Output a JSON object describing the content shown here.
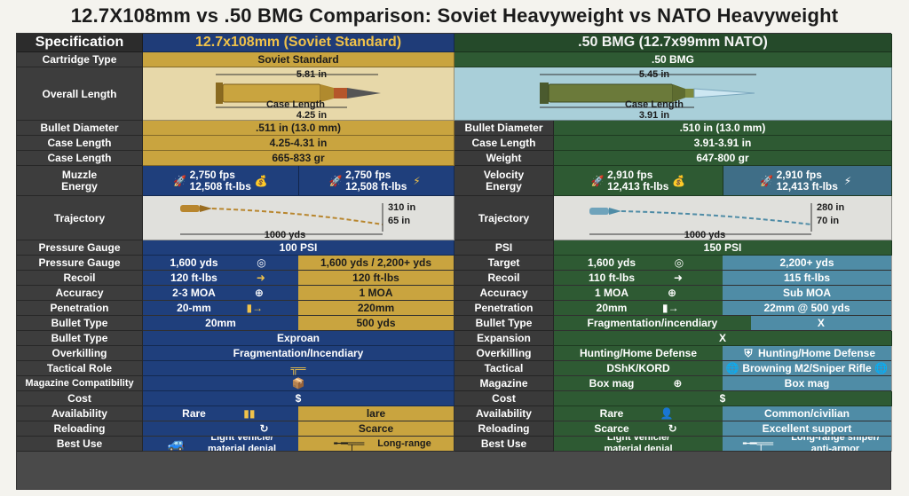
{
  "title": "12.7X108mm vs .50 BMG Comparison: Soviet Heavyweight vs NATO Heavyweight",
  "header": {
    "spec": "Specification",
    "soviet": "12.7x108mm (Soviet Standard)",
    "nato": ".50 BMG (12.7x99mm NATO)"
  },
  "rows": {
    "cartridge_type": {
      "label": "Cartridge Type",
      "soviet": "Soviet Standard",
      "nato": ".50 BMG"
    },
    "overall_length": {
      "label": "Overall Length",
      "soviet": {
        "length": "5.81 in",
        "case_label": "Case Length",
        "case_value": "4.25 in"
      },
      "nato": {
        "length": "5.45 in",
        "case_label": "Case Length",
        "case_value": "3.91 in"
      }
    },
    "bullet_diameter": {
      "label": "Bullet Diameter",
      "soviet": ".511 in (13.0 mm)",
      "mid_label": "Bullet Diameter",
      "nato": ".510 in (13.0 mm)"
    },
    "case_length": {
      "label": "Case Length",
      "soviet": "4.25-4.31 in",
      "mid_label": "Case Length",
      "nato": "3.91-3.91 in"
    },
    "case_length2": {
      "label": "Case Length",
      "soviet": "665-833 gr",
      "mid_label": "Weight",
      "nato": "647-800 gr"
    },
    "muzzle_energy": {
      "label1": "Muzzle",
      "label2": "Energy",
      "soviet_a": {
        "fps": "2,750 fps",
        "energy": "12,508 ft-lbs"
      },
      "soviet_b": {
        "fps": "2,750 fps",
        "energy": "12,508 ft-lbs"
      },
      "mid_label1": "Velocity",
      "mid_label2": "Energy",
      "nato_a": {
        "fps": "2,910 fps",
        "energy": "12,413 ft-lbs"
      },
      "nato_b": {
        "fps": "2,910 fps",
        "energy": "12,413 ft-lbs"
      }
    },
    "trajectory": {
      "label": "Trajectory",
      "mid_label": "Trajectory",
      "soviet": {
        "top": "310 in",
        "drop": "65 in",
        "range": "1000 yds"
      },
      "nato": {
        "top": "280 in",
        "drop": "70 in",
        "range": "1000 yds"
      }
    },
    "pressure_gauge": {
      "label": "Pressure Gauge",
      "soviet": "100 PSI",
      "mid_label": "PSI",
      "nato": "150 PSI"
    },
    "pressure_gauge2": {
      "label": "Pressure Gauge",
      "soviet_a": "1,600 yds",
      "soviet_b": "1,600 yds / 2,200+ yds",
      "mid_label": "Target",
      "nato_a": "1,600 yds",
      "nato_b": "2,200+ yds"
    },
    "recoil": {
      "label": "Recoil",
      "soviet_a": "120 ft-lbs",
      "soviet_b": "120 ft-lbs",
      "mid_label": "Recoil",
      "nato_a": "110 ft-lbs",
      "nato_b": "115 ft-lbs"
    },
    "accuracy": {
      "label": "Accuracy",
      "soviet_a": "2-3 MOA",
      "soviet_b": "1 MOA",
      "mid_label": "Accuracy",
      "nato_a": "1 MOA",
      "nato_b": "Sub MOA"
    },
    "penetration": {
      "label": "Penetration",
      "soviet_a": "20-mm",
      "soviet_b": "220mm",
      "mid_label": "Penetration",
      "nato_a": "20mm",
      "nato_b": "22mm @ 500 yds"
    },
    "bullet_type": {
      "label": "Bullet Type",
      "soviet_a": "20mm",
      "soviet_b": "500 yds",
      "mid_label": "Bullet Type",
      "nato_a": "Fragmentation/incendiary",
      "nato_b": "X"
    },
    "bullet_type2": {
      "label": "Bullet Type",
      "soviet": "Exproan",
      "mid_label": "Expansion",
      "nato": "X"
    },
    "overkilling": {
      "label": "Overkilling",
      "soviet": "Fragmentation/Incendiary",
      "mid_label": "Overkilling",
      "nato_a": "Hunting/Home Defense",
      "nato_b": "Hunting/Home Defense"
    },
    "tactical_role": {
      "label": "Tactical Role",
      "soviet": "",
      "mid_label": "Tactical",
      "nato_a": "DShK/KORD",
      "nato_b": "Browning M2/Sniper Rifle"
    },
    "magazine": {
      "label": "Magazine Compatibility",
      "soviet": "",
      "mid_label": "Magazine",
      "nato_a": "Box mag",
      "nato_b": "Box mag"
    },
    "cost": {
      "label": "Cost",
      "soviet": "$",
      "mid_label": "Cost",
      "nato": "$"
    },
    "availability": {
      "label": "Availability",
      "soviet_a": "Rare",
      "soviet_b": "lare",
      "mid_label": "Availability",
      "nato_a": "Rare",
      "nato_b": "Common/civilian"
    },
    "reloading": {
      "label": "Reloading",
      "soviet_a": "",
      "soviet_b": "Scarce",
      "mid_label": "Reloading",
      "nato_a": "Scarce",
      "nato_b": "Excellent support"
    },
    "best_use": {
      "label": "Best Use",
      "soviet_a": "Light vehicle/ material denial",
      "soviet_b": "Long-range",
      "mid_label": "Best Use",
      "nato_a": "Light vehicle/ material denial",
      "nato_b": "Long-range sniper/ anti-armor"
    }
  },
  "colors": {
    "soviet_gold": "#c9a43f",
    "soviet_blue": "#1f3f7c",
    "nato_green": "#2e5a33",
    "nato_teal": "#4f8ca6"
  }
}
